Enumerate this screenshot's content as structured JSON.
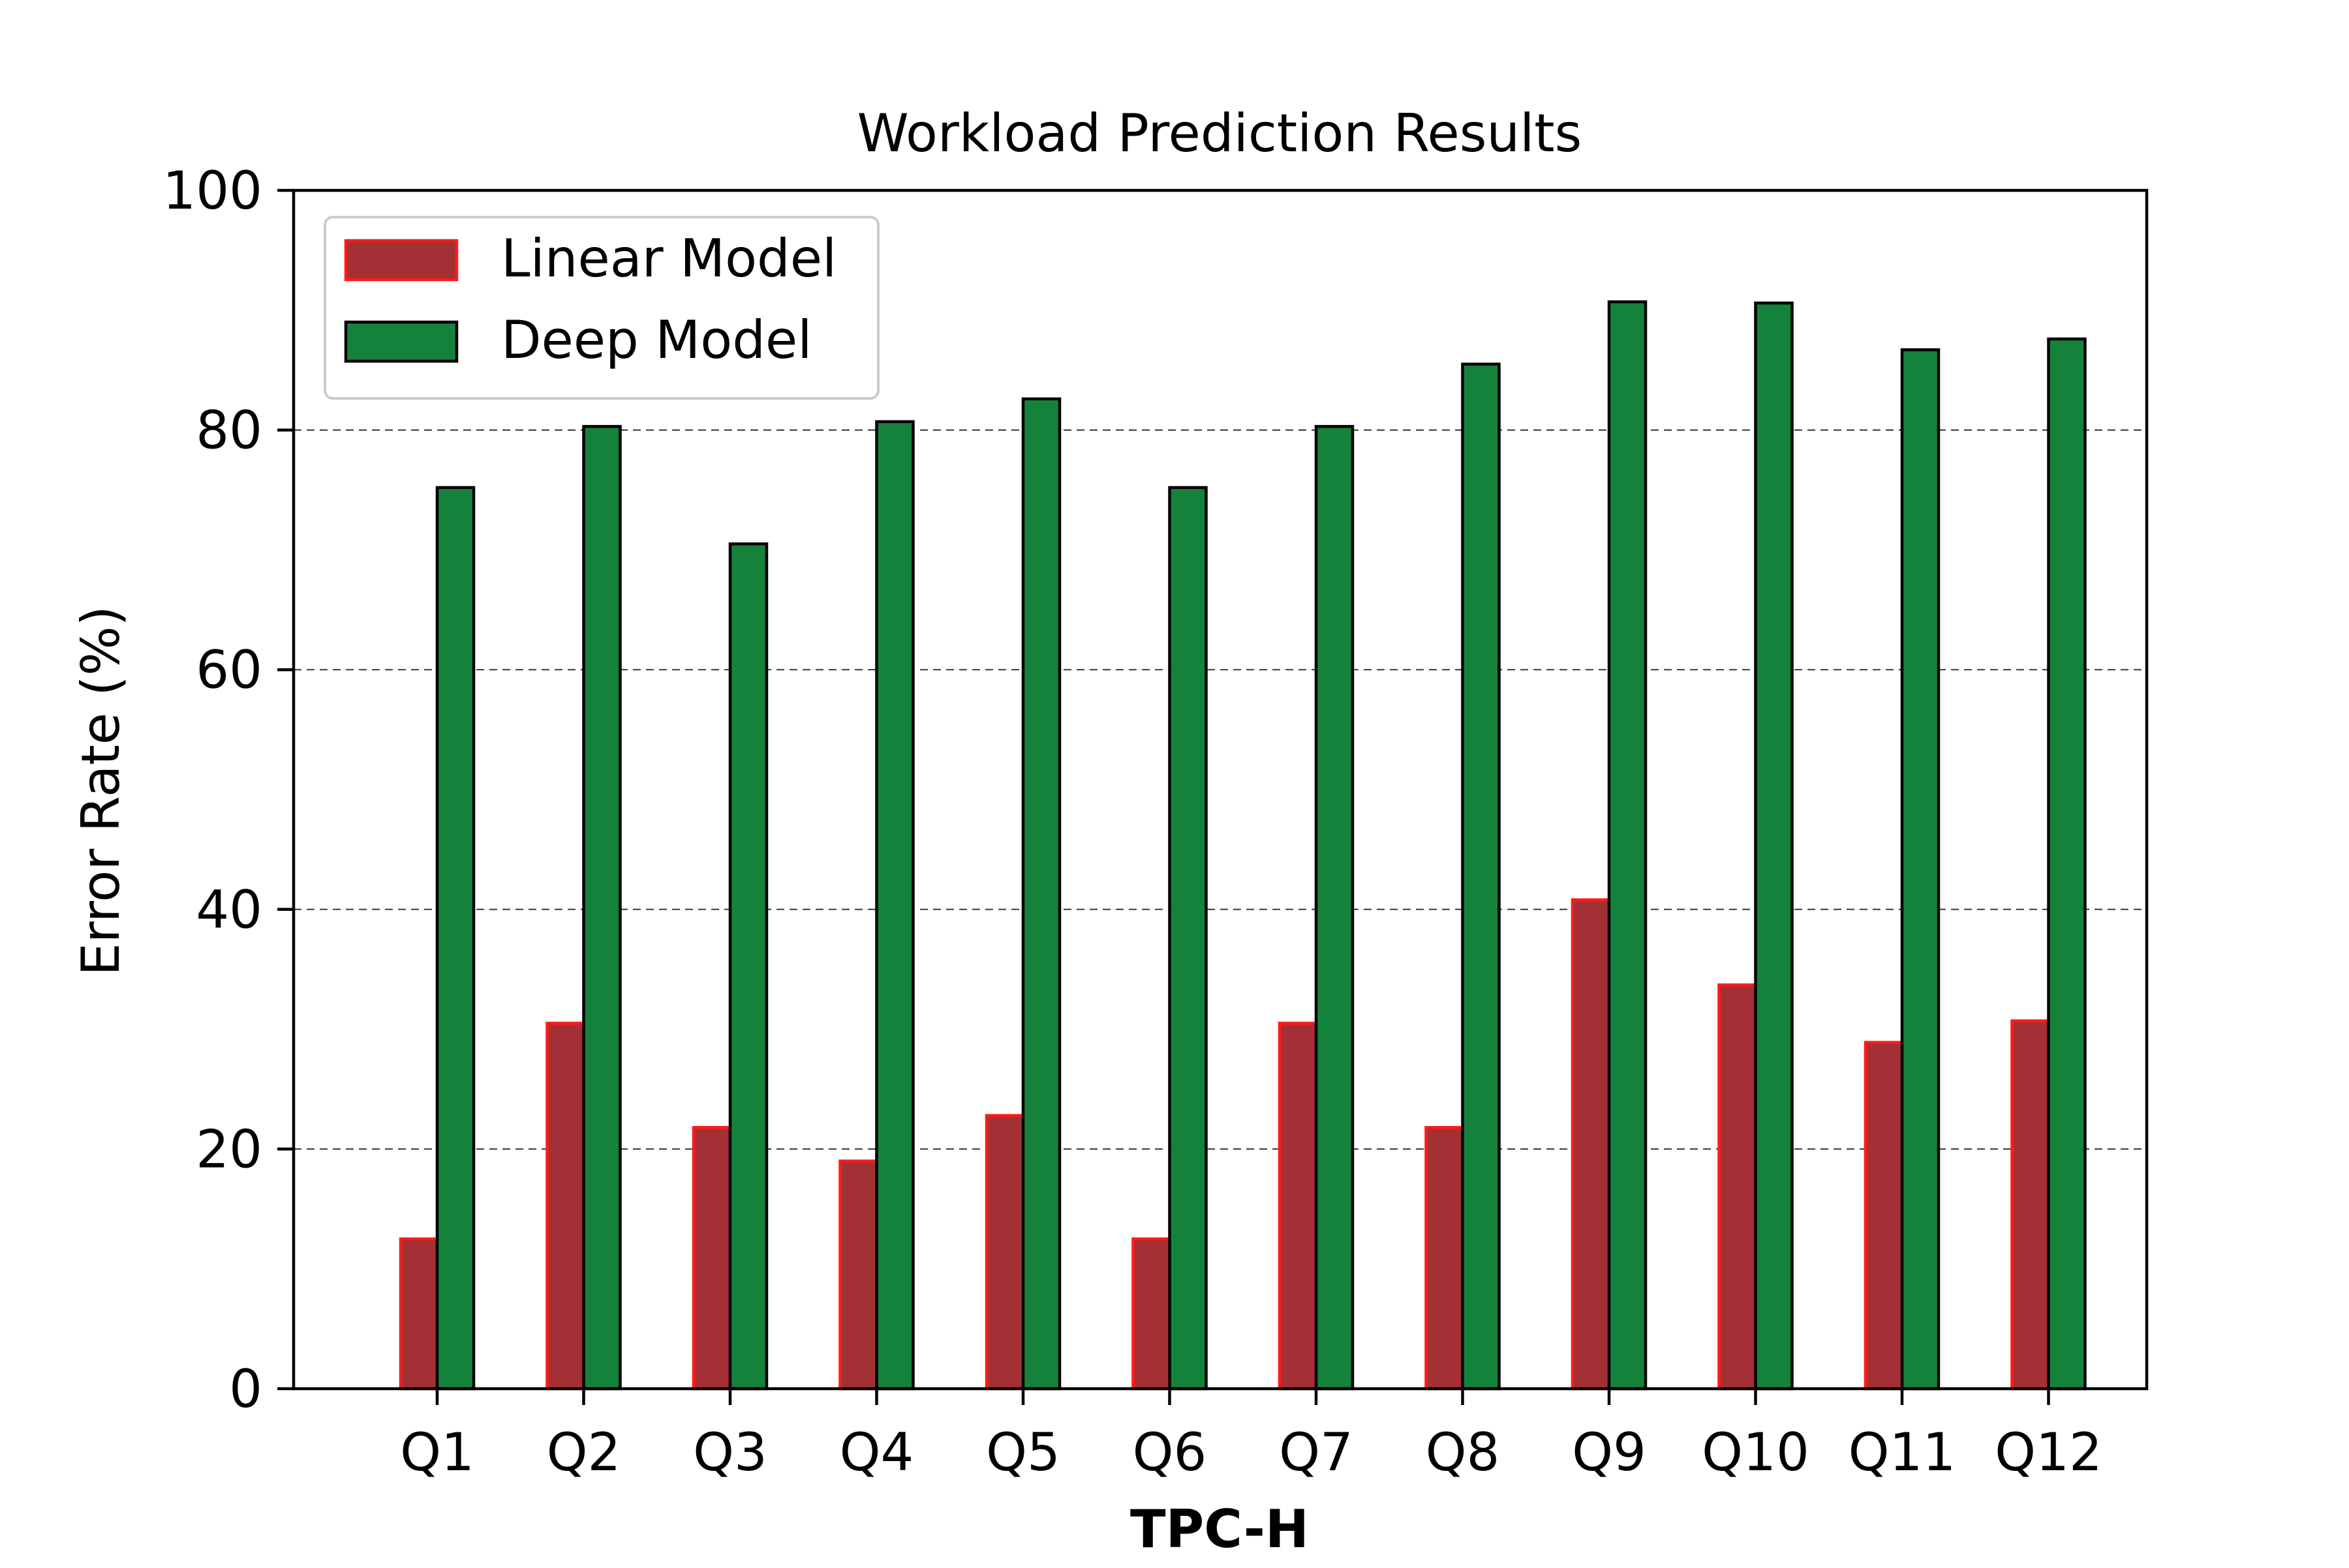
{
  "chart_data": {
    "type": "bar",
    "title": "Workload Prediction Results",
    "xlabel": "TPC-H",
    "ylabel": "Error Rate (%)",
    "categories": [
      "Q1",
      "Q2",
      "Q3",
      "Q4",
      "Q5",
      "Q6",
      "Q7",
      "Q8",
      "Q9",
      "Q10",
      "Q11",
      "Q12"
    ],
    "series": [
      {
        "name": "Linear Model",
        "values": [
          12.5,
          30.5,
          21.8,
          19.0,
          22.8,
          12.5,
          30.5,
          21.8,
          40.8,
          33.7,
          28.9,
          30.7
        ],
        "fill": "#a33034",
        "edge": "#ff1a1a"
      },
      {
        "name": "Deep Model",
        "values": [
          75.2,
          80.3,
          70.5,
          80.7,
          82.6,
          75.2,
          80.3,
          85.5,
          90.7,
          90.6,
          86.7,
          87.6
        ],
        "fill": "#15823c",
        "edge": "#000000"
      }
    ],
    "ylim": [
      0,
      100
    ],
    "yticks": [
      0,
      20,
      40,
      60,
      80,
      100
    ],
    "grid": "horizontal dashed",
    "legend": "top-left"
  }
}
